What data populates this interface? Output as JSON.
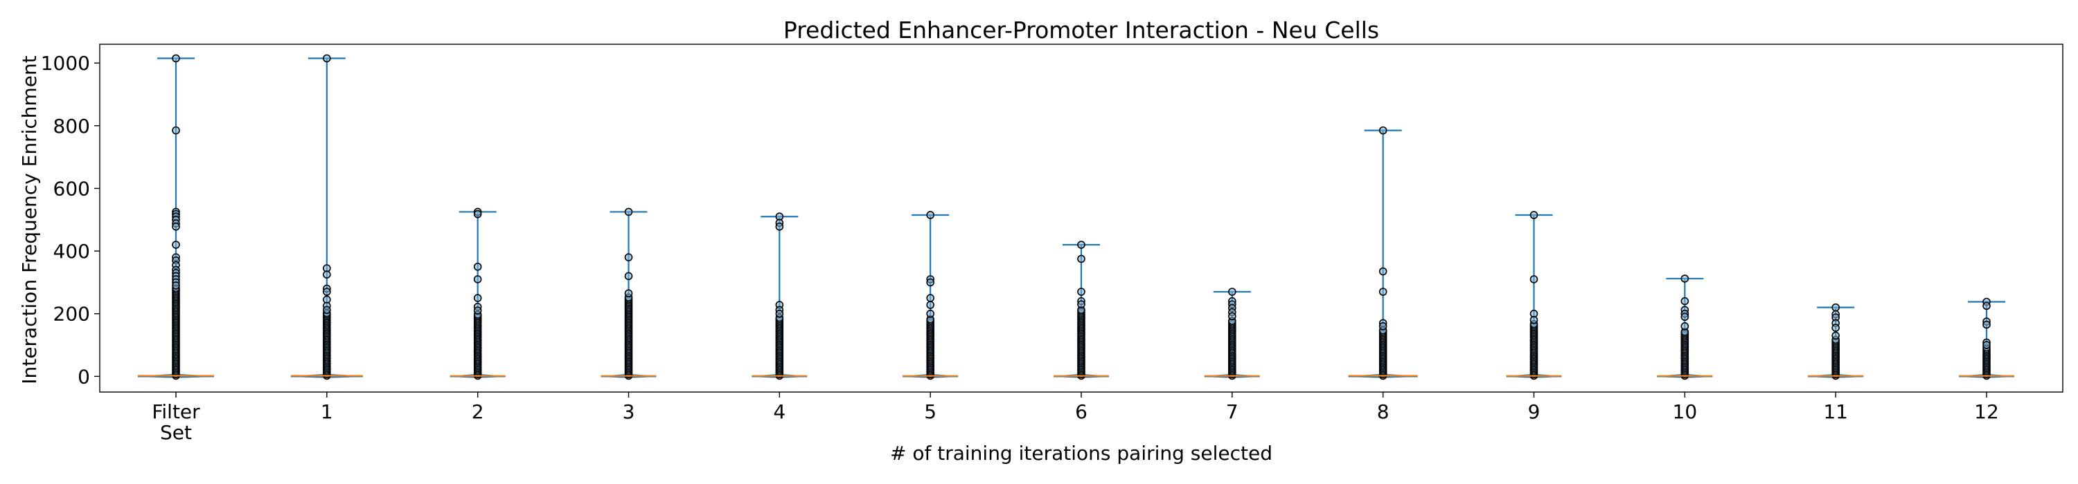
{
  "chart_data": {
    "type": "boxplot",
    "title": "Predicted Enhancer-Promoter Interaction - Neu Cells",
    "xlabel": "# of training iterations pairing selected",
    "ylabel": "Interaction Frequency Enrichment",
    "categories": [
      [
        "Filter",
        "Set"
      ],
      [
        "1"
      ],
      [
        "2"
      ],
      [
        "3"
      ],
      [
        "4"
      ],
      [
        "5"
      ],
      [
        "6"
      ],
      [
        "7"
      ],
      [
        "8"
      ],
      [
        "9"
      ],
      [
        "10"
      ],
      [
        "11"
      ],
      [
        "12"
      ]
    ],
    "ylim": [
      -50,
      1060
    ],
    "yticks": [
      0,
      200,
      400,
      600,
      800,
      1000
    ],
    "grid": false,
    "groups": [
      {
        "max": 1015,
        "min": 0,
        "median": 2,
        "density_width": 55,
        "dense_top": 285,
        "outliers": [
          1015,
          785,
          525,
          518,
          510,
          500,
          488,
          478,
          420,
          380,
          370,
          355,
          340,
          330,
          320,
          310,
          300,
          290
        ]
      },
      {
        "max": 1015,
        "min": 0,
        "median": 2,
        "density_width": 52,
        "dense_top": 205,
        "outliers": [
          1015,
          345,
          325,
          280,
          270,
          245,
          225,
          212
        ]
      },
      {
        "max": 525,
        "min": 0,
        "median": 1.5,
        "density_width": 40,
        "dense_top": 200,
        "outliers": [
          525,
          518,
          350,
          310,
          250,
          222,
          210
        ]
      },
      {
        "max": 525,
        "min": 0,
        "median": 1.5,
        "density_width": 40,
        "dense_top": 255,
        "outliers": [
          525,
          380,
          320,
          265
        ]
      },
      {
        "max": 510,
        "min": 0,
        "median": 1.5,
        "density_width": 40,
        "dense_top": 190,
        "outliers": [
          510,
          490,
          478,
          228,
          212,
          200
        ]
      },
      {
        "max": 515,
        "min": 0,
        "median": 1.5,
        "density_width": 40,
        "dense_top": 185,
        "outliers": [
          515,
          310,
          300,
          250,
          228,
          200
        ]
      },
      {
        "max": 420,
        "min": 0,
        "median": 1.5,
        "density_width": 40,
        "dense_top": 215,
        "outliers": [
          420,
          375,
          270,
          240,
          230
        ]
      },
      {
        "max": 270,
        "min": 0,
        "median": 1.5,
        "density_width": 40,
        "dense_top": 180,
        "outliers": [
          270,
          240,
          230,
          218,
          205,
          192
        ]
      },
      {
        "max": 785,
        "min": 0,
        "median": 2,
        "density_width": 50,
        "dense_top": 150,
        "outliers": [
          785,
          335,
          270,
          170,
          160
        ]
      },
      {
        "max": 515,
        "min": 0,
        "median": 1.5,
        "density_width": 40,
        "dense_top": 170,
        "outliers": [
          515,
          310,
          200,
          180
        ]
      },
      {
        "max": 312,
        "min": 0,
        "median": 1.5,
        "density_width": 40,
        "dense_top": 145,
        "outliers": [
          312,
          240,
          212,
          200,
          190,
          160
        ]
      },
      {
        "max": 220,
        "min": 0,
        "median": 1.5,
        "density_width": 40,
        "dense_top": 118,
        "outliers": [
          220,
          198,
          188,
          170,
          155,
          130
        ]
      },
      {
        "max": 238,
        "min": 0,
        "median": 1.5,
        "density_width": 40,
        "dense_top": 95,
        "outliers": [
          238,
          225,
          175,
          165,
          108,
          100
        ]
      }
    ]
  }
}
